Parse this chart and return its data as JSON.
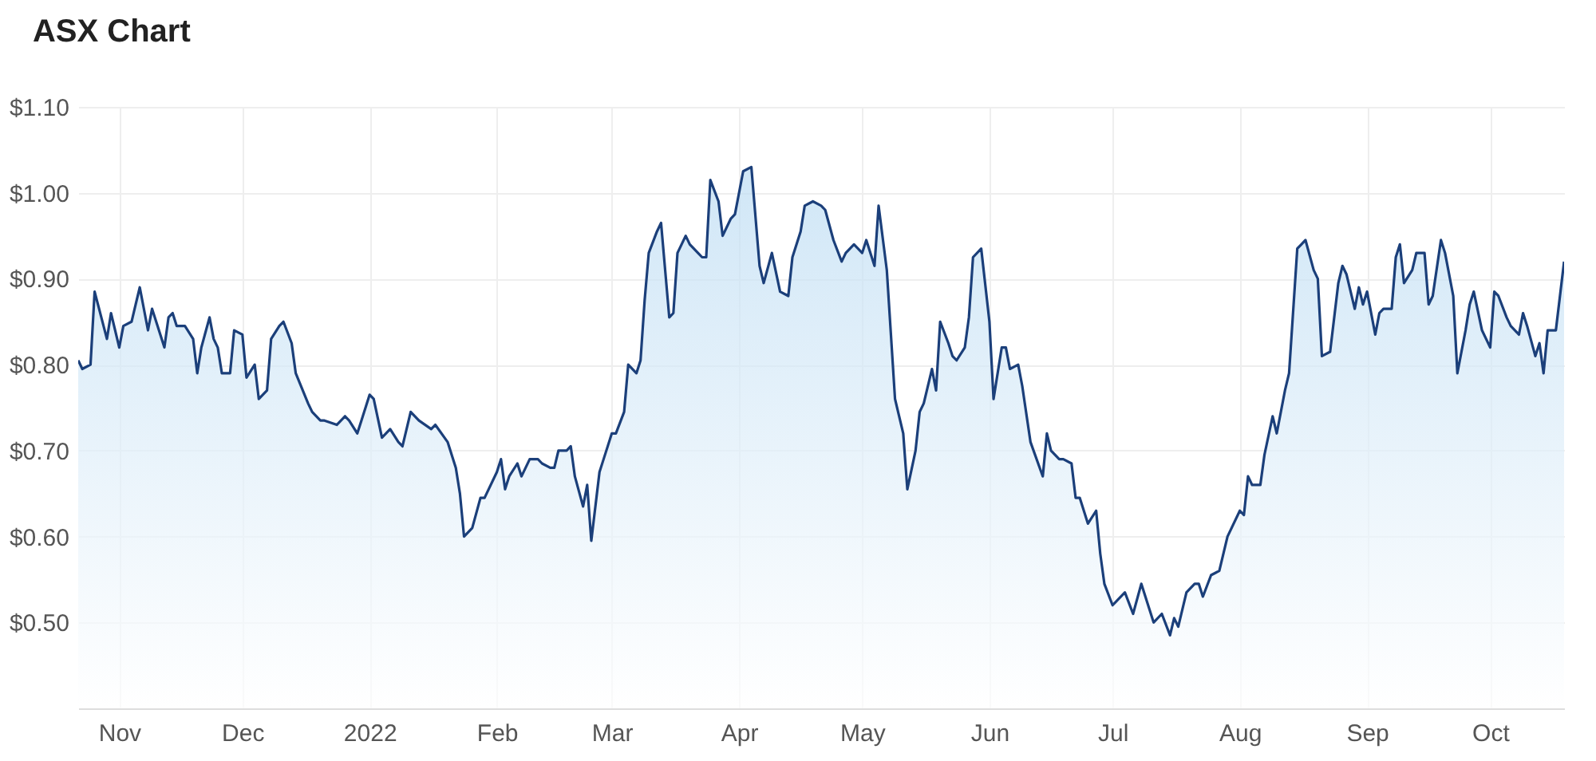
{
  "chart_data": {
    "type": "area",
    "title": "ASX Chart",
    "xlim": [
      "2021-10-22",
      "2022-10-19"
    ],
    "xticks": [
      {
        "value": "2021-11-01",
        "label": "Nov"
      },
      {
        "value": "2021-12-01",
        "label": "Dec"
      },
      {
        "value": "2022-01-01",
        "label": "2022"
      },
      {
        "value": "2022-02-01",
        "label": "Feb"
      },
      {
        "value": "2022-03-01",
        "label": "Mar"
      },
      {
        "value": "2022-04-01",
        "label": "Apr"
      },
      {
        "value": "2022-05-01",
        "label": "May"
      },
      {
        "value": "2022-06-01",
        "label": "Jun"
      },
      {
        "value": "2022-07-01",
        "label": "Jul"
      },
      {
        "value": "2022-08-01",
        "label": "Aug"
      },
      {
        "value": "2022-09-01",
        "label": "Sep"
      },
      {
        "value": "2022-10-01",
        "label": "Oct"
      }
    ],
    "ylim": [
      0.4,
      1.1
    ],
    "yticks": [
      {
        "value": 0.5,
        "label": "$0.50"
      },
      {
        "value": 0.6,
        "label": "$0.60"
      },
      {
        "value": 0.7,
        "label": "$0.70"
      },
      {
        "value": 0.8,
        "label": "$0.80"
      },
      {
        "value": 0.9,
        "label": "$0.90"
      },
      {
        "value": 1.0,
        "label": "$1.00"
      },
      {
        "value": 1.1,
        "label": "$1.10"
      }
    ],
    "grid": true,
    "x": [
      "2021-10-22",
      "2021-10-23",
      "2021-10-25",
      "2021-10-26",
      "2021-10-29",
      "2021-10-30",
      "2021-11-01",
      "2021-11-02",
      "2021-11-04",
      "2021-11-05",
      "2021-11-06",
      "2021-11-08",
      "2021-11-09",
      "2021-11-10",
      "2021-11-12",
      "2021-11-13",
      "2021-11-14",
      "2021-11-15",
      "2021-11-17",
      "2021-11-19",
      "2021-11-20",
      "2021-11-21",
      "2021-11-23",
      "2021-11-24",
      "2021-11-25",
      "2021-11-26",
      "2021-11-28",
      "2021-11-29",
      "2021-12-01",
      "2021-12-02",
      "2021-12-04",
      "2021-12-05",
      "2021-12-07",
      "2021-12-08",
      "2021-12-10",
      "2021-12-11",
      "2021-12-13",
      "2021-12-14",
      "2021-12-17",
      "2021-12-18",
      "2021-12-20",
      "2021-12-21",
      "2021-12-24",
      "2021-12-26",
      "2021-12-27",
      "2021-12-29",
      "2021-12-30",
      "2022-01-01",
      "2022-01-02",
      "2022-01-04",
      "2022-01-06",
      "2022-01-08",
      "2022-01-09",
      "2022-01-11",
      "2022-01-13",
      "2022-01-16",
      "2022-01-17",
      "2022-01-20",
      "2022-01-22",
      "2022-01-23",
      "2022-01-24",
      "2022-01-26",
      "2022-01-28",
      "2022-01-29",
      "2022-02-01",
      "2022-02-02",
      "2022-02-03",
      "2022-02-04",
      "2022-02-06",
      "2022-02-07",
      "2022-02-09",
      "2022-02-11",
      "2022-02-12",
      "2022-02-14",
      "2022-02-15",
      "2022-02-16",
      "2022-02-18",
      "2022-02-19",
      "2022-02-20",
      "2022-02-22",
      "2022-02-23",
      "2022-02-24",
      "2022-02-26",
      "2022-02-27",
      "2022-03-01",
      "2022-03-02",
      "2022-03-04",
      "2022-03-05",
      "2022-03-07",
      "2022-03-08",
      "2022-03-09",
      "2022-03-10",
      "2022-03-12",
      "2022-03-13",
      "2022-03-15",
      "2022-03-16",
      "2022-03-17",
      "2022-03-19",
      "2022-03-20",
      "2022-03-22",
      "2022-03-23",
      "2022-03-24",
      "2022-03-25",
      "2022-03-27",
      "2022-03-28",
      "2022-03-30",
      "2022-03-31",
      "2022-04-01",
      "2022-04-02",
      "2022-04-04",
      "2022-04-06",
      "2022-04-07",
      "2022-04-09",
      "2022-04-11",
      "2022-04-13",
      "2022-04-14",
      "2022-04-16",
      "2022-04-17",
      "2022-04-19",
      "2022-04-21",
      "2022-04-22",
      "2022-04-24",
      "2022-04-26",
      "2022-04-27",
      "2022-04-29",
      "2022-05-01",
      "2022-05-02",
      "2022-05-04",
      "2022-05-05",
      "2022-05-07",
      "2022-05-09",
      "2022-05-11",
      "2022-05-12",
      "2022-05-14",
      "2022-05-15",
      "2022-05-16",
      "2022-05-18",
      "2022-05-19",
      "2022-05-20",
      "2022-05-22",
      "2022-05-23",
      "2022-05-24",
      "2022-05-26",
      "2022-05-27",
      "2022-05-28",
      "2022-05-30",
      "2022-06-01",
      "2022-06-02",
      "2022-06-04",
      "2022-06-05",
      "2022-06-06",
      "2022-06-08",
      "2022-06-09",
      "2022-06-11",
      "2022-06-14",
      "2022-06-15",
      "2022-06-16",
      "2022-06-18",
      "2022-06-19",
      "2022-06-21",
      "2022-06-22",
      "2022-06-23",
      "2022-06-24",
      "2022-06-25",
      "2022-06-27",
      "2022-06-28",
      "2022-06-29",
      "2022-07-01",
      "2022-07-02",
      "2022-07-04",
      "2022-07-06",
      "2022-07-08",
      "2022-07-09",
      "2022-07-11",
      "2022-07-13",
      "2022-07-15",
      "2022-07-16",
      "2022-07-17",
      "2022-07-19",
      "2022-07-21",
      "2022-07-22",
      "2022-07-23",
      "2022-07-25",
      "2022-07-27",
      "2022-07-29",
      "2022-08-01",
      "2022-08-02",
      "2022-08-03",
      "2022-08-04",
      "2022-08-06",
      "2022-08-07",
      "2022-08-09",
      "2022-08-10",
      "2022-08-12",
      "2022-08-13",
      "2022-08-15",
      "2022-08-16",
      "2022-08-17",
      "2022-08-19",
      "2022-08-20",
      "2022-08-21",
      "2022-08-23",
      "2022-08-25",
      "2022-08-26",
      "2022-08-27",
      "2022-08-29",
      "2022-08-30",
      "2022-08-31",
      "2022-09-01",
      "2022-09-03",
      "2022-09-04",
      "2022-09-05",
      "2022-09-07",
      "2022-09-08",
      "2022-09-09",
      "2022-09-10",
      "2022-09-12",
      "2022-09-13",
      "2022-09-15",
      "2022-09-16",
      "2022-09-17",
      "2022-09-19",
      "2022-09-20",
      "2022-09-22",
      "2022-09-23",
      "2022-09-25",
      "2022-09-26",
      "2022-09-27",
      "2022-09-29",
      "2022-10-01",
      "2022-10-02",
      "2022-10-03",
      "2022-10-05",
      "2022-10-06",
      "2022-10-08",
      "2022-10-09",
      "2022-10-10",
      "2022-10-12",
      "2022-10-13",
      "2022-10-14",
      "2022-10-15",
      "2022-10-17",
      "2022-10-19"
    ],
    "series": [
      {
        "color": "#1b3f7a",
        "values": [
          0.805,
          0.795,
          0.8,
          0.885,
          0.83,
          0.86,
          0.82,
          0.845,
          0.85,
          0.87,
          0.89,
          0.84,
          0.865,
          0.85,
          0.82,
          0.855,
          0.86,
          0.845,
          0.845,
          0.83,
          0.79,
          0.82,
          0.855,
          0.83,
          0.82,
          0.79,
          0.79,
          0.84,
          0.835,
          0.785,
          0.8,
          0.76,
          0.77,
          0.83,
          0.845,
          0.85,
          0.825,
          0.79,
          0.755,
          0.745,
          0.735,
          0.735,
          0.73,
          0.74,
          0.735,
          0.72,
          0.735,
          0.765,
          0.76,
          0.715,
          0.725,
          0.71,
          0.705,
          0.745,
          0.735,
          0.725,
          0.73,
          0.71,
          0.68,
          0.65,
          0.6,
          0.61,
          0.645,
          0.645,
          0.675,
          0.69,
          0.655,
          0.67,
          0.685,
          0.67,
          0.69,
          0.69,
          0.685,
          0.68,
          0.68,
          0.7,
          0.7,
          0.705,
          0.67,
          0.635,
          0.66,
          0.595,
          0.675,
          0.69,
          0.72,
          0.72,
          0.745,
          0.8,
          0.79,
          0.805,
          0.875,
          0.93,
          0.955,
          0.965,
          0.855,
          0.86,
          0.93,
          0.95,
          0.94,
          0.93,
          0.925,
          0.925,
          1.015,
          0.99,
          0.95,
          0.97,
          0.975,
          1.0,
          1.025,
          1.03,
          0.915,
          0.895,
          0.93,
          0.885,
          0.88,
          0.925,
          0.955,
          0.985,
          0.99,
          0.985,
          0.98,
          0.945,
          0.92,
          0.93,
          0.94,
          0.93,
          0.945,
          0.915,
          0.985,
          0.91,
          0.76,
          0.72,
          0.655,
          0.7,
          0.745,
          0.755,
          0.795,
          0.77,
          0.85,
          0.825,
          0.81,
          0.805,
          0.82,
          0.855,
          0.925,
          0.935,
          0.85,
          0.76,
          0.82,
          0.82,
          0.795,
          0.8,
          0.775,
          0.71,
          0.67,
          0.72,
          0.7,
          0.69,
          0.69,
          0.685,
          0.645,
          0.645,
          0.63,
          0.615,
          0.63,
          0.58,
          0.545,
          0.52,
          0.525,
          0.535,
          0.51,
          0.545,
          0.53,
          0.5,
          0.51,
          0.485,
          0.505,
          0.495,
          0.535,
          0.545,
          0.545,
          0.53,
          0.555,
          0.56,
          0.6,
          0.63,
          0.625,
          0.67,
          0.66,
          0.66,
          0.695,
          0.74,
          0.72,
          0.77,
          0.79,
          0.935,
          0.94,
          0.945,
          0.91,
          0.9,
          0.81,
          0.815,
          0.895,
          0.915,
          0.905,
          0.865,
          0.89,
          0.87,
          0.885,
          0.835,
          0.86,
          0.865,
          0.865,
          0.925,
          0.94,
          0.895,
          0.91,
          0.93,
          0.93,
          0.87,
          0.88,
          0.945,
          0.93,
          0.88,
          0.79,
          0.84,
          0.87,
          0.885,
          0.84,
          0.82,
          0.885,
          0.88,
          0.855,
          0.845,
          0.835,
          0.86,
          0.845,
          0.81,
          0.825,
          0.79,
          0.84,
          0.84,
          0.92
        ]
      }
    ]
  }
}
